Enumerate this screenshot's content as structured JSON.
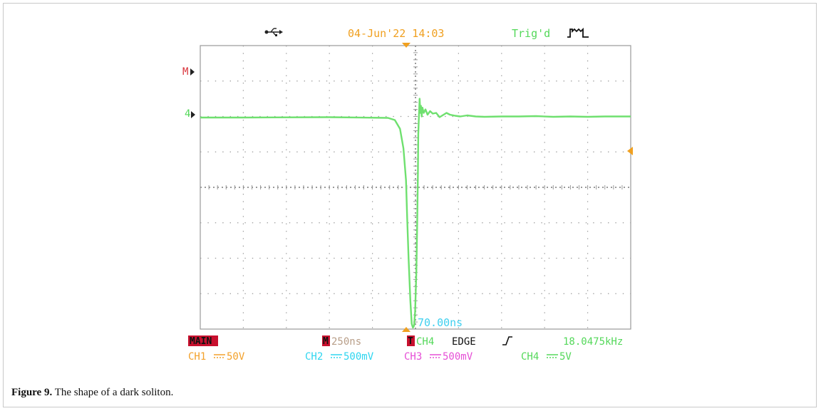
{
  "header": {
    "usb_icon": "usb-icon",
    "datetime": "04-Jun'22 14:03",
    "trig_status": "Trig'd",
    "trig_icon": "pulse-wave-icon"
  },
  "markers": {
    "math_marker": "M",
    "ch4_marker": "4"
  },
  "cursor_readout": "70.00ns",
  "status_bar": {
    "mode": "MAIN",
    "timebase_prefix": "M",
    "timebase": "250ns",
    "trigger_prefix": "T",
    "trigger_source": "CH4",
    "trigger_type": "EDGE",
    "trigger_slope_icon": "rising-edge-icon",
    "frequency": "18.0475kHz"
  },
  "channels": [
    {
      "label": "CH1",
      "scale": "50V",
      "color": "#f3a12a"
    },
    {
      "label": "CH2",
      "scale": "500mV",
      "color": "#2fd6f0"
    },
    {
      "label": "CH3",
      "scale": "500mV",
      "color": "#e64fd6"
    },
    {
      "label": "CH4",
      "scale": "5V",
      "color": "#54d85a"
    }
  ],
  "colors": {
    "trace": "#6fe06f",
    "grid": "#9a9a9a",
    "trigger_marker": "#f0a020",
    "math_marker": "#d9333b",
    "cursor_text": "#3fd0ef",
    "datetime": "#f0a020",
    "trig": "#54d85a",
    "mode_bg": "#c8102e"
  },
  "chart_data": {
    "type": "line",
    "x_unit": "ns",
    "y_unit": "div",
    "xlim": [
      -1250,
      1250
    ],
    "ylim": [
      -4,
      4
    ],
    "grid": true,
    "grid_divisions": [
      10,
      8
    ],
    "series": [
      {
        "x": [
          -1250,
          -1000,
          -500,
          -160,
          -120,
          -90,
          -70,
          -55,
          -48,
          -40,
          -30,
          -22,
          -15,
          -8,
          -2,
          5,
          10,
          14,
          16,
          20,
          24,
          28,
          32,
          36,
          40,
          48,
          58,
          70,
          85,
          100,
          120,
          140,
          160,
          180,
          200,
          230,
          260,
          300,
          350,
          400,
          500,
          600,
          700,
          800,
          900,
          1000,
          1100,
          1250
        ],
        "y": [
          1.97,
          1.97,
          1.98,
          1.96,
          1.9,
          1.65,
          1.1,
          0.2,
          -0.9,
          -2.0,
          -3.2,
          -3.85,
          -3.96,
          -3.9,
          -3.5,
          -2.4,
          -1.0,
          0.4,
          1.5,
          2.0,
          2.5,
          2.1,
          2.3,
          2.0,
          2.25,
          2.1,
          2.2,
          2.05,
          2.15,
          2.08,
          2.1,
          1.98,
          2.04,
          2.1,
          2.05,
          2.02,
          2.0,
          2.03,
          2.0,
          1.99,
          2.0,
          2.0,
          2.01,
          1.99,
          2.0,
          1.99,
          2.0,
          2.0
        ]
      }
    ]
  },
  "caption": {
    "label": "Figure 9.",
    "text": " The shape of a dark soliton."
  }
}
